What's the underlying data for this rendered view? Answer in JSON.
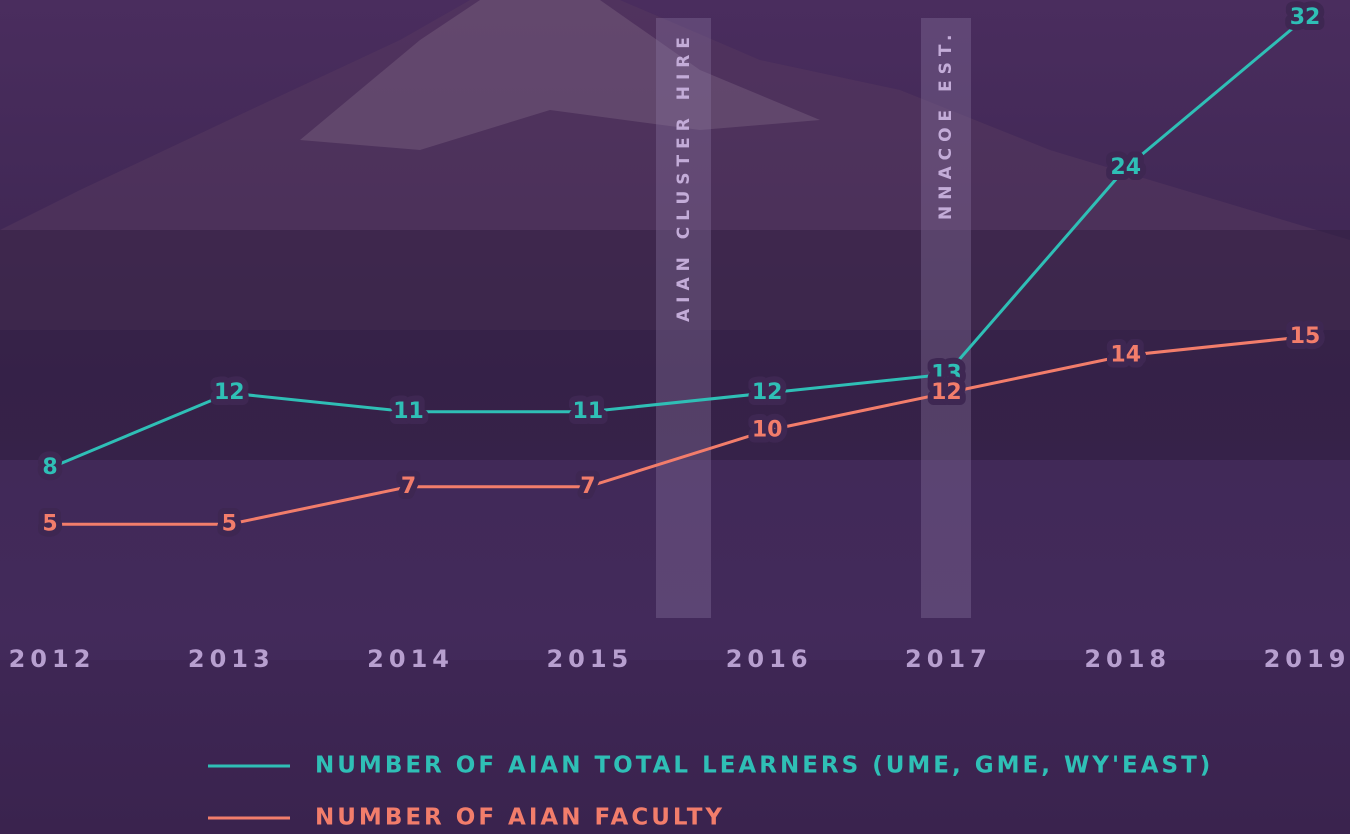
{
  "chart_data": {
    "type": "line",
    "categories": [
      "2012",
      "2013",
      "2014",
      "2015",
      "2016",
      "2017",
      "2018",
      "2019"
    ],
    "series": [
      {
        "name": "NUMBER OF AIAN TOTAL LEARNERS (UME, GME, WY'EAST)",
        "color": "#2fbfb6",
        "values": [
          8,
          12,
          11,
          11,
          12,
          13,
          24,
          32
        ]
      },
      {
        "name": "NUMBER OF AIAN FACULTY",
        "color": "#f27d6b",
        "values": [
          5,
          5,
          7,
          7,
          10,
          12,
          14,
          15
        ]
      }
    ],
    "annotations": [
      "AIAN CLUSTER HIRE",
      "NNACOE EST."
    ]
  }
}
